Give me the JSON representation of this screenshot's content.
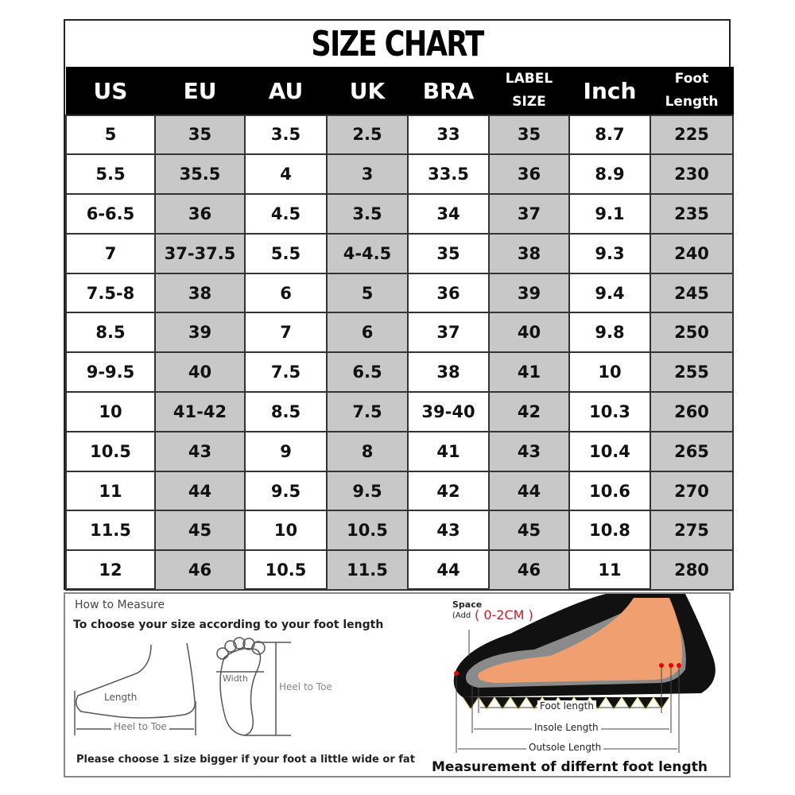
{
  "title": "SIZE CHART",
  "columns": [
    "US",
    "EU",
    "AU",
    "UK",
    "BRA",
    "LABEL SIZE",
    "Inch",
    "Foot Length"
  ],
  "shaded_color": "#c8c8c8",
  "rows": [
    [
      "5",
      "35",
      "3.5",
      "2.5",
      "33",
      "35",
      "8.7",
      "225"
    ],
    [
      "5.5",
      "35.5",
      "4",
      "3",
      "33.5",
      "36",
      "8.9",
      "230"
    ],
    [
      "6-6.5",
      "36",
      "4.5",
      "3.5",
      "34",
      "37",
      "9.1",
      "235"
    ],
    [
      "7",
      "37-37.5",
      "5.5",
      "4-4.5",
      "35",
      "38",
      "9.3",
      "240"
    ],
    [
      "7.5-8",
      "38",
      "6",
      "5",
      "36",
      "39",
      "9.4",
      "245"
    ],
    [
      "8.5",
      "39",
      "7",
      "6",
      "37",
      "40",
      "9.8",
      "250"
    ],
    [
      "9-9.5",
      "40",
      "7.5",
      "6.5",
      "38",
      "41",
      "10",
      "255"
    ],
    [
      "10",
      "41-42",
      "8.5",
      "7.5",
      "39-40",
      "42",
      "10.3",
      "260"
    ],
    [
      "10.5",
      "43",
      "9",
      "8",
      "41",
      "43",
      "10.4",
      "265"
    ],
    [
      "11",
      "44",
      "9.5",
      "9.5",
      "42",
      "44",
      "10.6",
      "270"
    ],
    [
      "11.5",
      "45",
      "10",
      "10.5",
      "43",
      "45",
      "10.8",
      "275"
    ],
    [
      "12",
      "46",
      "10.5",
      "11.5",
      "44",
      "46",
      "11",
      "280"
    ]
  ],
  "measure": {
    "heading": "How to Measure",
    "subheading": "To choose your size according to your foot length",
    "length": "Length",
    "heel_to_toe": "Heel to Toe",
    "width": "Width",
    "note": "Please choose 1 size bigger if your foot a little wide or fat",
    "space": "Space",
    "add": "(Add",
    "space_value": "( 0-2CM )",
    "foot_length": "Foot length",
    "insole_length": "Insole Length",
    "outsole_length": "Outsole Length",
    "caption": "Measurement of differnt foot length"
  }
}
